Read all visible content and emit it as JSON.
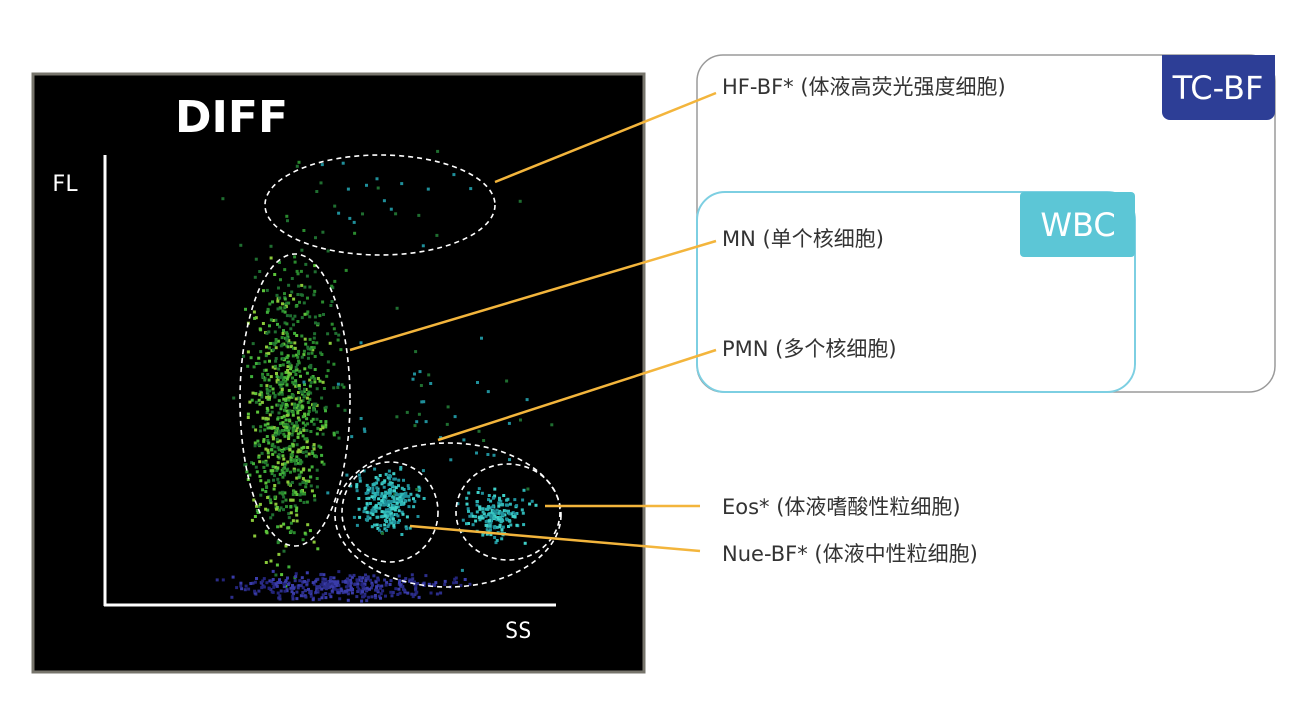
{
  "plot": {
    "title": "DIFF",
    "y_axis": "FL",
    "x_axis": "SS"
  },
  "boxes": {
    "outer": "TC-BF",
    "inner": "WBC"
  },
  "labels": [
    "HF-BF* (体液高荧光强度细胞)",
    "MN (单个核细胞)",
    "PMN (多个核细胞)",
    "Eos* (体液嗜酸性粒细胞)",
    "Nue-BF* (体液中性粒细胞)"
  ]
}
